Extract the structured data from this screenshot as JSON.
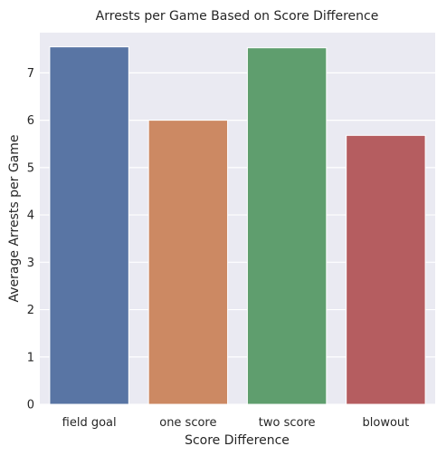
{
  "chart_data": {
    "type": "bar",
    "title": "Arrests per Game Based on Score Difference",
    "xlabel": "Score Difference",
    "ylabel": "Average Arrests per Game",
    "categories": [
      "field goal",
      "one score",
      "two score",
      "blowout"
    ],
    "values": [
      7.55,
      6.0,
      7.53,
      5.68
    ],
    "colors": [
      "#5975a4",
      "#cc8963",
      "#5f9e6e",
      "#b55d60"
    ],
    "ylim": [
      0,
      7.85
    ],
    "yticks": [
      "0",
      "1",
      "2",
      "3",
      "4",
      "5",
      "6",
      "7"
    ],
    "grid": true,
    "background": "#eaeaf2"
  }
}
